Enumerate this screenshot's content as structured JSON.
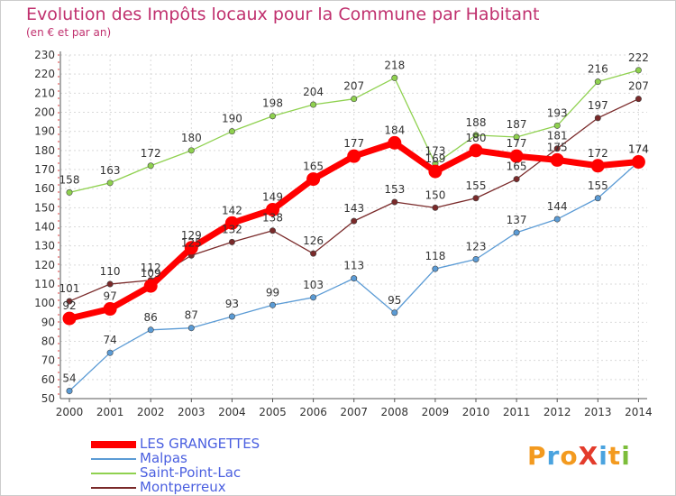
{
  "title": "Evolution des Impôts locaux pour la Commune par Habitant",
  "subtitle": "(en € et par an)",
  "logo": {
    "text": "ProXiti",
    "colors": [
      "#f39a1f",
      "#4aa3df",
      "#f39a1f",
      "#e33b2b",
      "#4aa3df",
      "#f39a1f",
      "#7cbd3a"
    ]
  },
  "chart_data": {
    "type": "line",
    "x": [
      2000,
      2001,
      2002,
      2003,
      2004,
      2005,
      2006,
      2007,
      2008,
      2009,
      2010,
      2011,
      2012,
      2013,
      2014
    ],
    "ylim": [
      50,
      230
    ],
    "yticks": [
      50,
      60,
      70,
      80,
      90,
      100,
      110,
      120,
      130,
      140,
      150,
      160,
      170,
      180,
      190,
      200,
      210,
      220,
      230
    ],
    "grid": true,
    "legend_position": "bottom-left",
    "series": [
      {
        "name": "LES GRANGETTES",
        "color": "#ff0000",
        "values": [
          92,
          97,
          109,
          129,
          142,
          149,
          165,
          177,
          184,
          169,
          180,
          177,
          175,
          172,
          174
        ]
      },
      {
        "name": "Malpas",
        "color": "#5b9bd5",
        "values": [
          54,
          74,
          86,
          87,
          93,
          99,
          103,
          113,
          95,
          118,
          123,
          137,
          144,
          155,
          174
        ]
      },
      {
        "name": "Saint-Point-Lac",
        "color": "#8fd14f",
        "values": [
          158,
          163,
          172,
          180,
          190,
          198,
          204,
          207,
          218,
          173,
          188,
          187,
          193,
          216,
          222
        ]
      },
      {
        "name": "Montperreux",
        "color": "#7a2a2a",
        "values": [
          101,
          110,
          112,
          125,
          132,
          138,
          126,
          143,
          153,
          150,
          155,
          165,
          181,
          197,
          207
        ]
      }
    ]
  }
}
